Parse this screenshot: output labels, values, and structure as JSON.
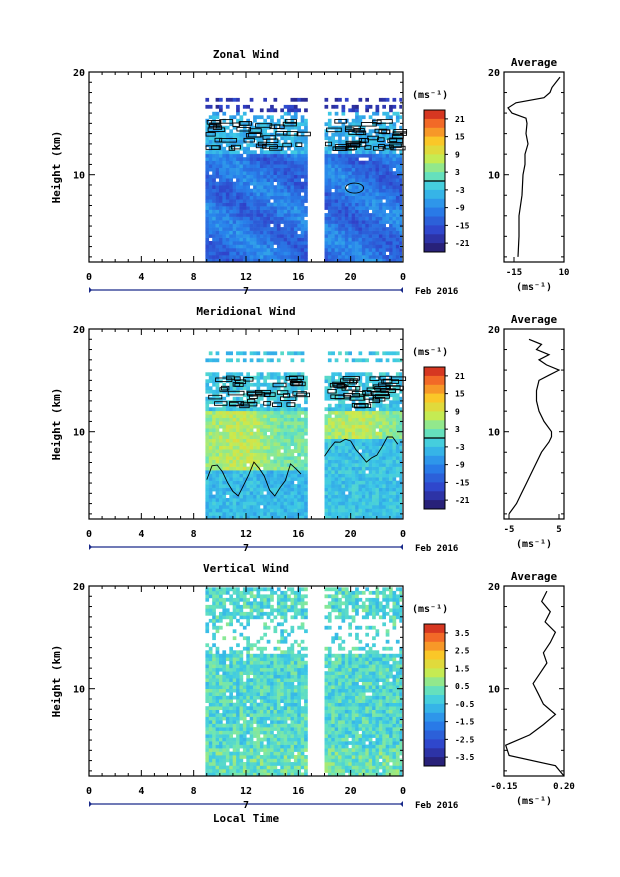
{
  "chart_data": [
    {
      "type": "heatmap",
      "title": "Zonal Wind",
      "ylabel": "Height (km)",
      "xlabel": "",
      "date_label": "Feb 2016",
      "day_label": "7",
      "x_ticks": [
        "0",
        "4",
        "8",
        "12",
        "16",
        "20",
        "0"
      ],
      "y_ticks": [
        "10",
        "20"
      ],
      "ylim": [
        1.5,
        20
      ],
      "xlim": [
        0,
        24
      ],
      "data_extent_hours": [
        [
          8.9,
          16.7
        ],
        [
          18.0,
          23.9
        ]
      ],
      "colorbar": {
        "unit": "(ms⁻¹)",
        "ticks": [
          "21",
          "15",
          "9",
          "3",
          "-3",
          "-9",
          "-15",
          "-21"
        ],
        "range": [
          -24,
          24
        ],
        "zero_line": 0
      },
      "profile": {
        "title": "Average",
        "xlabel": "(ms⁻¹)",
        "x_ticks": [
          "-15",
          "10"
        ],
        "y_ticks": [
          "10",
          "20"
        ],
        "xlim": [
          -20,
          10
        ],
        "height_km": [
          2,
          4,
          6,
          8,
          10,
          11,
          12,
          13,
          14,
          15,
          15.5,
          16,
          16.5,
          17,
          17.5,
          18,
          18.5,
          19,
          19.5
        ],
        "values": [
          -13,
          -12.5,
          -12.5,
          -11,
          -10.5,
          -9.5,
          -9.5,
          -8,
          -9,
          -8.5,
          -9,
          -16,
          -18,
          -14,
          0,
          3,
          4,
          6,
          8
        ]
      }
    },
    {
      "type": "heatmap",
      "title": "Meridional Wind",
      "ylabel": "Height (km)",
      "xlabel": "",
      "date_label": "Feb 2016",
      "day_label": "7",
      "x_ticks": [
        "0",
        "4",
        "8",
        "12",
        "16",
        "20",
        "0"
      ],
      "y_ticks": [
        "10",
        "20"
      ],
      "ylim": [
        1.5,
        20
      ],
      "xlim": [
        0,
        24
      ],
      "data_extent_hours": [
        [
          8.9,
          16.7
        ],
        [
          18.0,
          23.9
        ]
      ],
      "colorbar": {
        "unit": "(ms⁻¹)",
        "ticks": [
          "21",
          "15",
          "9",
          "3",
          "-3",
          "-9",
          "-15",
          "-21"
        ],
        "range": [
          -24,
          24
        ],
        "zero_line": 0
      },
      "profile": {
        "title": "Average",
        "xlabel": "(ms⁻¹)",
        "x_ticks": [
          "-5",
          "5"
        ],
        "y_ticks": [
          "10",
          "20"
        ],
        "xlim": [
          -6,
          6
        ],
        "height_km": [
          2,
          3,
          4,
          5,
          6,
          7,
          8,
          9,
          9.5,
          10,
          11,
          12,
          13,
          14,
          15,
          15.5,
          16,
          16.5,
          17,
          17.5,
          18,
          18.5,
          19
        ],
        "values": [
          -5,
          -3.5,
          -2.5,
          -1.5,
          -0.5,
          0.5,
          1.5,
          3,
          3.5,
          3.5,
          2,
          1,
          0.5,
          0.5,
          1,
          3,
          5,
          2.5,
          1,
          3,
          0.5,
          1.5,
          -1
        ]
      }
    },
    {
      "type": "heatmap",
      "title": "Vertical Wind",
      "ylabel": "Height (km)",
      "xlabel": "Local Time",
      "date_label": "Feb 2016",
      "day_label": "7",
      "x_ticks": [
        "0",
        "4",
        "8",
        "12",
        "16",
        "20",
        "0"
      ],
      "y_ticks": [
        "10",
        "20"
      ],
      "ylim": [
        1.5,
        20
      ],
      "xlim": [
        0,
        24
      ],
      "data_extent_hours": [
        [
          8.9,
          16.7
        ],
        [
          18.0,
          23.9
        ]
      ],
      "colorbar": {
        "unit": "(ms⁻¹)",
        "ticks": [
          "3.5",
          "2.5",
          "1.5",
          "0.5",
          "-0.5",
          "-1.5",
          "-2.5",
          "-3.5"
        ],
        "range": [
          -4,
          4
        ]
      },
      "profile": {
        "title": "Average",
        "xlabel": "(ms⁻¹)",
        "x_ticks": [
          "-0.15",
          "0.20"
        ],
        "y_ticks": [
          "10",
          "20"
        ],
        "xlim": [
          -0.15,
          0.2
        ],
        "height_km": [
          1.5,
          2.5,
          3.5,
          4.5,
          5.5,
          6.5,
          7.5,
          8.5,
          9.5,
          10.5,
          11.5,
          12.5,
          13.5,
          14.5,
          15.5,
          16.5,
          17.5,
          18.5,
          19.5
        ],
        "values": [
          0.2,
          0.15,
          -0.12,
          -0.14,
          0.0,
          0.08,
          0.15,
          0.08,
          0.05,
          0.02,
          0.06,
          0.1,
          0.08,
          0.12,
          0.15,
          0.09,
          0.12,
          0.07,
          0.1
        ]
      }
    }
  ]
}
